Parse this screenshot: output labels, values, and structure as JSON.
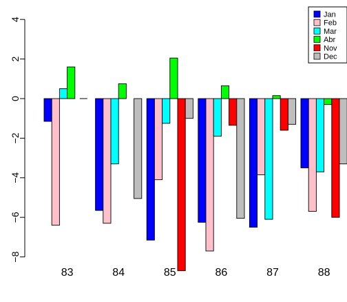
{
  "chart_data": {
    "type": "bar",
    "categories": [
      "83",
      "84",
      "85",
      "86",
      "87",
      "88"
    ],
    "series": [
      {
        "name": "Jan",
        "color": "#0000ff",
        "values": [
          -1.15,
          -5.65,
          -7.15,
          -6.25,
          -6.5,
          -3.5
        ]
      },
      {
        "name": "Feb",
        "color": "#ffc0cb",
        "values": [
          -6.4,
          -6.3,
          -4.1,
          -7.7,
          -3.85,
          -5.7
        ]
      },
      {
        "name": "Mar",
        "color": "#00ffff",
        "values": [
          0.5,
          -3.3,
          -1.25,
          -1.9,
          -6.1,
          -3.7
        ]
      },
      {
        "name": "Abr",
        "color": "#00ff00",
        "values": [
          1.6,
          0.75,
          2.05,
          0.65,
          0.15,
          -0.3
        ]
      },
      {
        "name": "Nov",
        "color": "#ff0000",
        "values": [
          null,
          null,
          -8.7,
          -1.35,
          -1.6,
          -6.0
        ]
      },
      {
        "name": "Dec",
        "color": "#bebebe",
        "values": [
          null,
          -5.05,
          -1.0,
          -6.05,
          -1.3,
          -3.3
        ]
      }
    ],
    "yticks": [
      -8,
      -6,
      -4,
      -2,
      0,
      2,
      4
    ],
    "ytick_labels": [
      "−8",
      "−6",
      "−4",
      "−2",
      "0",
      "2",
      "4"
    ],
    "ylim": [
      -9.1,
      4.0
    ],
    "legend_position": "top-right",
    "grid": false
  }
}
